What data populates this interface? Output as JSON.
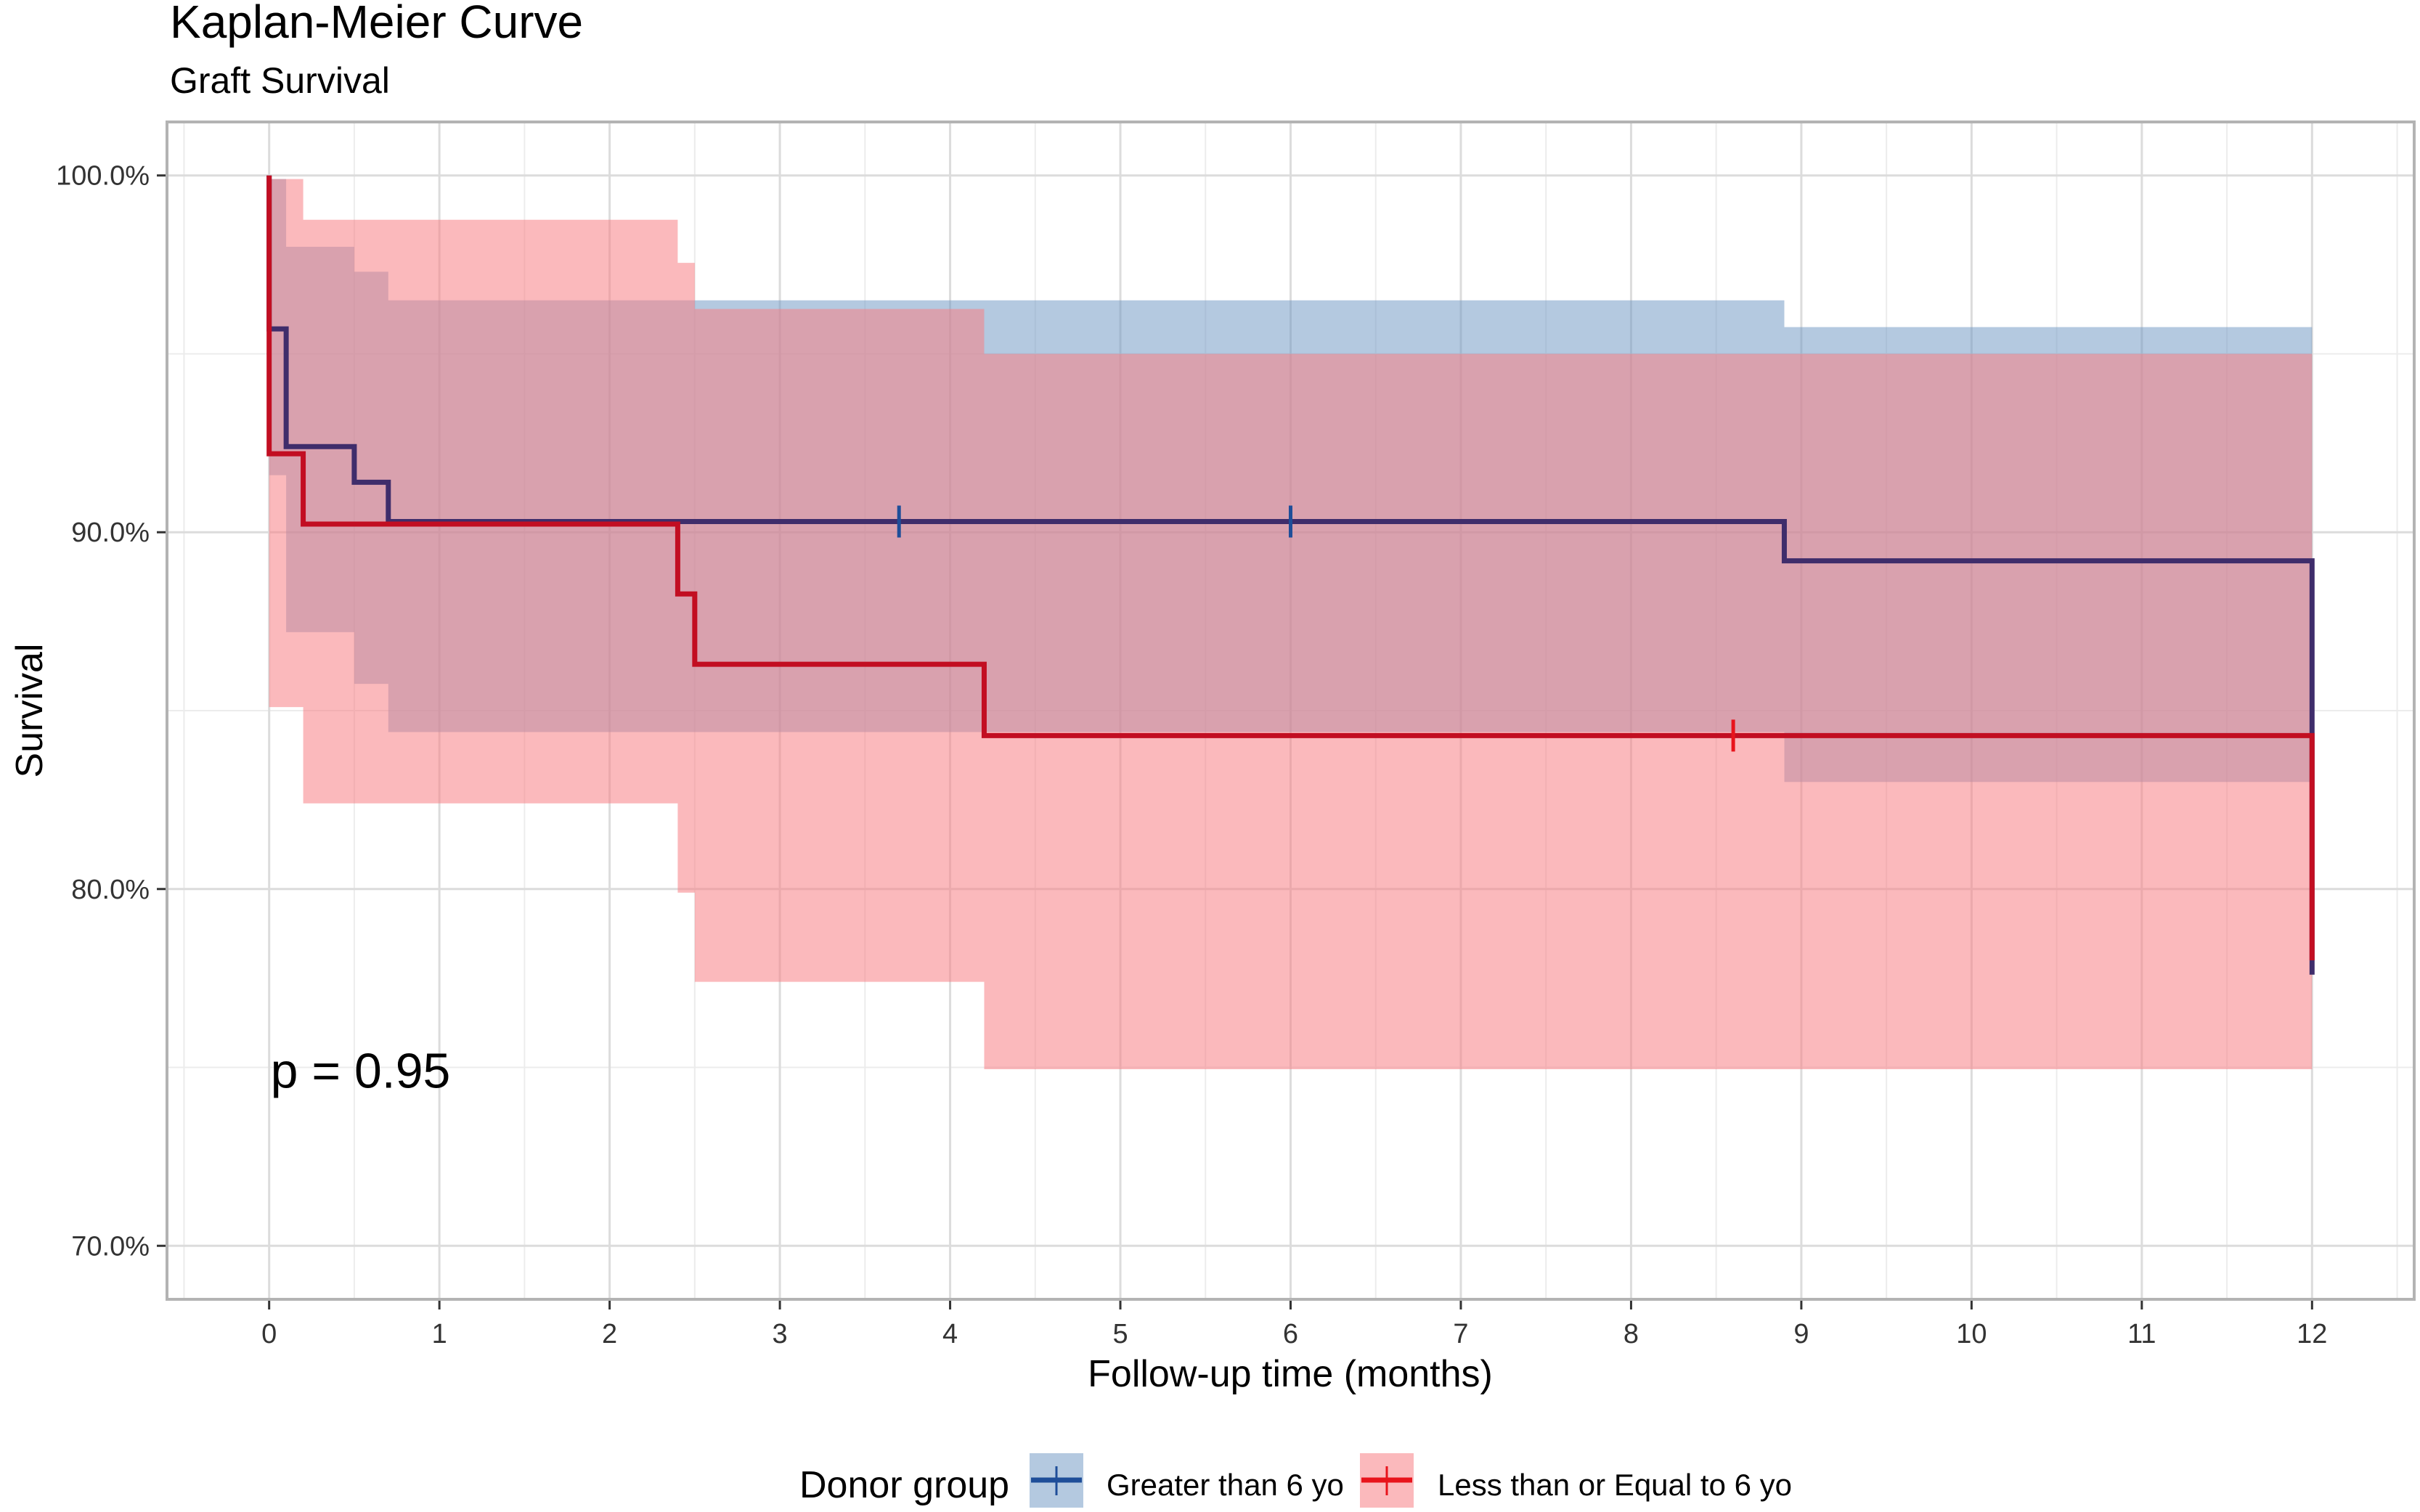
{
  "chart_data": {
    "type": "line",
    "subtype": "kaplan-meier-step",
    "title": "Kaplan-Meier Curve",
    "subtitle": "Graft Survival",
    "xlabel": "Follow-up time (months)",
    "ylabel": "Survival",
    "xlim": [
      -0.6,
      12.6
    ],
    "ylim": [
      68.5,
      101.5
    ],
    "x_ticks": [
      0,
      1,
      2,
      3,
      4,
      5,
      6,
      7,
      8,
      9,
      10,
      11,
      12
    ],
    "x_tick_labels": [
      "0",
      "1",
      "2",
      "3",
      "4",
      "5",
      "6",
      "7",
      "8",
      "9",
      "10",
      "11",
      "12"
    ],
    "y_ticks": [
      70,
      80,
      90,
      100
    ],
    "y_tick_labels": [
      "70.0%",
      "80.0%",
      "90.0%",
      "100.0%"
    ],
    "x_minor_ticks": [
      -0.5,
      0.5,
      1.5,
      2.5,
      3.5,
      4.5,
      5.5,
      6.5,
      7.5,
      8.5,
      9.5,
      10.5,
      11.5,
      12.5
    ],
    "y_minor_ticks": [
      75,
      85,
      95
    ],
    "grid": true,
    "annotation": "p = 0.95",
    "annotation_position": {
      "x": 0,
      "y": 75
    },
    "legend": {
      "title": "Donor group",
      "placement": "bottom",
      "entries": [
        "Greater than 6 yo",
        "Less than or Equal to 6 yo"
      ]
    },
    "series": [
      {
        "name": "Greater than 6 yo",
        "color": "#1f4e99",
        "line_color": "#3f2d6b",
        "ci_color": "#6f98c4",
        "steps": [
          {
            "t": 0,
            "s": 95.7
          },
          {
            "t": 0.1,
            "s": 92.4
          },
          {
            "t": 0.5,
            "s": 91.4
          },
          {
            "t": 0.7,
            "s": 90.3
          },
          {
            "t": 8.9,
            "s": 89.2
          },
          {
            "t": 12,
            "s": 77.6
          }
        ],
        "start_survival": 100,
        "ci_upper": [
          {
            "t": 0,
            "v": 99.9
          },
          {
            "t": 0.1,
            "v": 98.0
          },
          {
            "t": 0.5,
            "v": 97.3
          },
          {
            "t": 0.7,
            "v": 96.5
          },
          {
            "t": 8.9,
            "v": 95.75
          }
        ],
        "ci_lower": [
          {
            "t": 0,
            "v": 91.6
          },
          {
            "t": 0.1,
            "v": 87.2
          },
          {
            "t": 0.5,
            "v": 85.75
          },
          {
            "t": 0.7,
            "v": 84.4
          },
          {
            "t": 8.9,
            "v": 83.0
          }
        ],
        "ci_end": 12,
        "censor_times": [
          3.7,
          6.0
        ]
      },
      {
        "name": "Less than or Equal to 6 yo",
        "color": "#e8141c",
        "line_color": "#c20e22",
        "ci_color": "#f87f85",
        "steps": [
          {
            "t": 0,
            "s": 92.2
          },
          {
            "t": 0.2,
            "s": 90.23
          },
          {
            "t": 2.4,
            "s": 88.27
          },
          {
            "t": 2.5,
            "s": 86.3
          },
          {
            "t": 4.2,
            "s": 84.3
          },
          {
            "t": 12,
            "s": 78.0
          }
        ],
        "start_survival": 100,
        "ci_upper": [
          {
            "t": 0,
            "v": 99.9
          },
          {
            "t": 0.2,
            "v": 98.76
          },
          {
            "t": 2.4,
            "v": 97.55
          },
          {
            "t": 2.5,
            "v": 96.26
          },
          {
            "t": 4.2,
            "v": 95.0
          }
        ],
        "ci_lower": [
          {
            "t": 0,
            "v": 85.1
          },
          {
            "t": 0.2,
            "v": 82.4
          },
          {
            "t": 2.4,
            "v": 79.9
          },
          {
            "t": 2.5,
            "v": 77.4
          },
          {
            "t": 4.2,
            "v": 74.95
          }
        ],
        "ci_end": 12,
        "censor_times": [
          8.6
        ]
      }
    ]
  }
}
